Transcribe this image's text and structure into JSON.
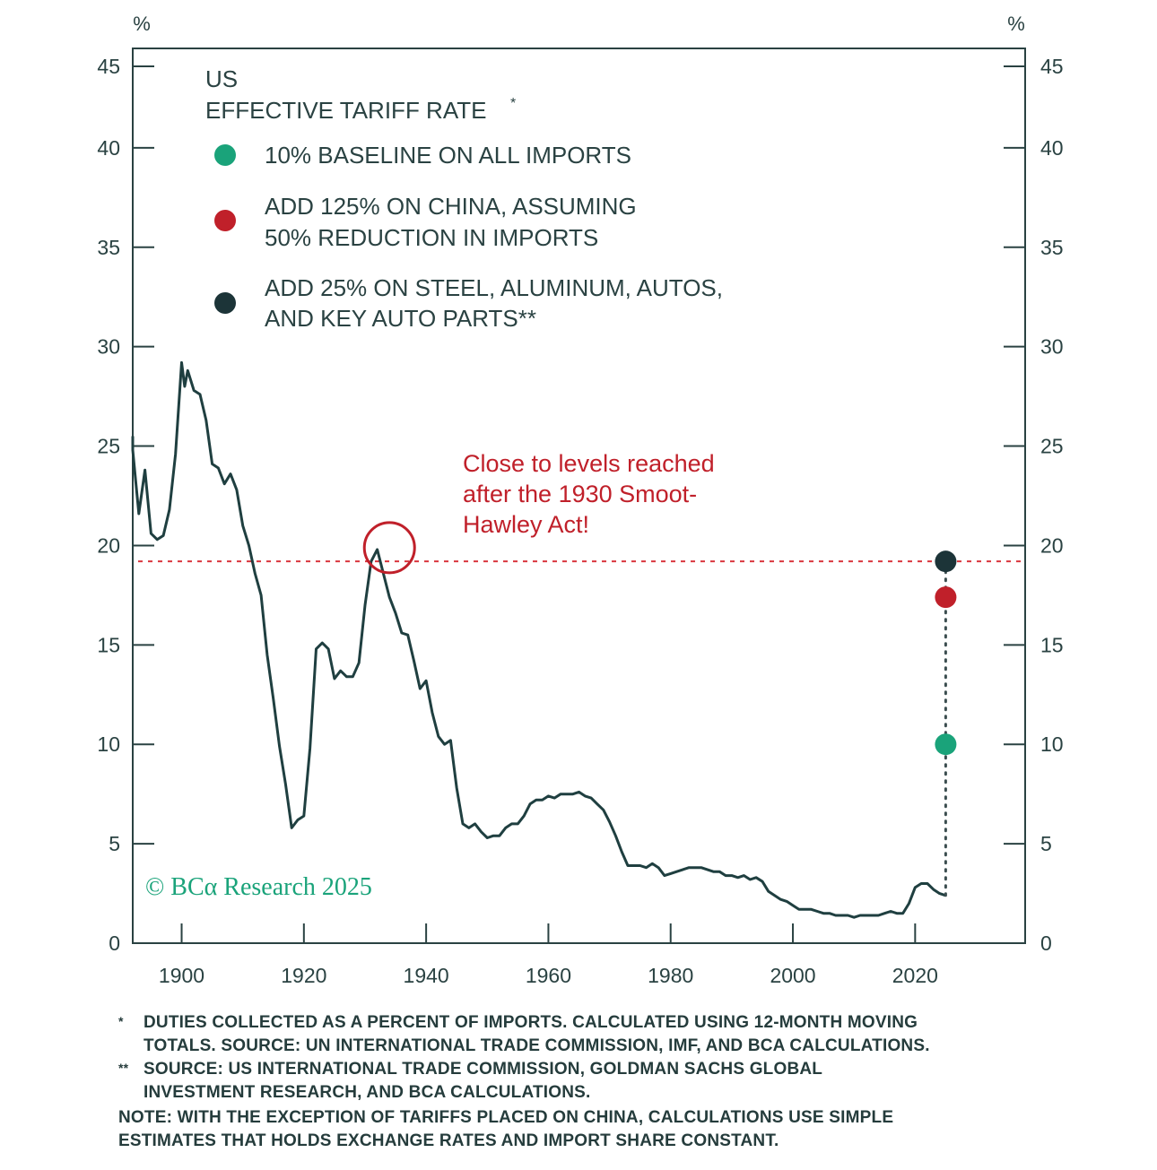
{
  "chart_data": {
    "type": "line",
    "unit_left": "%",
    "unit_right": "%",
    "xlim": [
      1892,
      2038
    ],
    "ylim": [
      0,
      45
    ],
    "x_ticks": [
      1900,
      1920,
      1940,
      1960,
      1980,
      2000,
      2020
    ],
    "y_ticks": [
      0,
      5,
      10,
      15,
      20,
      25,
      30,
      35,
      40,
      45
    ],
    "legend": {
      "title_line1": "US",
      "title_line2": "EFFECTIVE TARIFF RATE",
      "title_mark": "*",
      "items": [
        {
          "color": "#1aa37a",
          "line1": "10% BASELINE ON ALL IMPORTS",
          "line2": ""
        },
        {
          "color": "#c0202a",
          "line1": "ADD 125% ON CHINA, ASSUMING",
          "line2": "50% REDUCTION IN IMPORTS"
        },
        {
          "color": "#1c3438",
          "line1": "ADD 25% ON STEEL, ALUMINUM, AUTOS,",
          "line2": "AND KEY AUTO PARTS**"
        }
      ]
    },
    "annotation": {
      "lines": [
        "Close to levels reached",
        "after the 1930 Smoot-",
        "Hawley Act!"
      ],
      "circle_at": [
        1934,
        19.8
      ],
      "color": "#c0202a"
    },
    "reference_line": {
      "y": 19.2,
      "color": "#d9363e",
      "style": "dotted"
    },
    "scenario_points": {
      "x": 2025,
      "base": 2.4,
      "points": [
        {
          "y": 10.0,
          "color": "#1aa37a"
        },
        {
          "y": 17.4,
          "color": "#c0202a"
        },
        {
          "y": 19.2,
          "color": "#1c3438"
        }
      ]
    },
    "watermark": "© BCα Research 2025",
    "series": [
      {
        "color": "#1f3f40",
        "x": [
          1891.5,
          1892,
          1893,
          1894,
          1895,
          1896,
          1897,
          1898,
          1899,
          1900,
          1900.5,
          1901,
          1902,
          1903,
          1904,
          1905,
          1906,
          1907,
          1908,
          1909,
          1910,
          1911,
          1912,
          1913,
          1914,
          1915,
          1916,
          1917,
          1918,
          1919,
          1920,
          1921,
          1922,
          1923,
          1924,
          1925,
          1926,
          1927,
          1928,
          1929,
          1930,
          1931,
          1932,
          1933,
          1934,
          1935,
          1936,
          1937,
          1938,
          1939,
          1940,
          1941,
          1942,
          1943,
          1944,
          1945,
          1946,
          1947,
          1948,
          1949,
          1950,
          1951,
          1952,
          1953,
          1954,
          1955,
          1956,
          1957,
          1958,
          1959,
          1960,
          1961,
          1962,
          1963,
          1964,
          1965,
          1966,
          1967,
          1968,
          1969,
          1970,
          1971,
          1972,
          1973,
          1974,
          1975,
          1976,
          1977,
          1978,
          1979,
          1980,
          1981,
          1982,
          1983,
          1984,
          1985,
          1986,
          1987,
          1988,
          1989,
          1990,
          1991,
          1992,
          1993,
          1994,
          1995,
          1996,
          1997,
          1998,
          1999,
          2000,
          2001,
          2002,
          2003,
          2004,
          2005,
          2006,
          2007,
          2008,
          2009,
          2010,
          2011,
          2012,
          2013,
          2014,
          2015,
          2016,
          2017,
          2018,
          2019,
          2020,
          2021,
          2022,
          2023,
          2024,
          2025
        ],
        "y": [
          25.5,
          24.8,
          21.6,
          23.8,
          20.6,
          20.3,
          20.5,
          21.8,
          24.6,
          29.2,
          28.0,
          28.8,
          27.8,
          27.6,
          26.3,
          24.1,
          23.9,
          23.1,
          23.6,
          22.8,
          21.0,
          20.0,
          18.6,
          17.5,
          14.5,
          12.3,
          9.9,
          8.0,
          5.8,
          6.2,
          6.4,
          9.8,
          14.8,
          15.1,
          14.8,
          13.3,
          13.7,
          13.4,
          13.4,
          14.1,
          17.0,
          19.2,
          19.8,
          18.6,
          17.4,
          16.6,
          15.6,
          15.5,
          14.2,
          12.8,
          13.2,
          11.6,
          10.4,
          10.0,
          10.2,
          7.8,
          6.0,
          5.8,
          6.0,
          5.6,
          5.3,
          5.4,
          5.4,
          5.8,
          6.0,
          6.0,
          6.4,
          7.0,
          7.2,
          7.2,
          7.4,
          7.3,
          7.5,
          7.5,
          7.5,
          7.6,
          7.4,
          7.3,
          7.0,
          6.7,
          6.1,
          5.4,
          4.6,
          3.9,
          3.9,
          3.9,
          3.8,
          4.0,
          3.8,
          3.4,
          3.5,
          3.6,
          3.7,
          3.8,
          3.8,
          3.8,
          3.7,
          3.6,
          3.6,
          3.4,
          3.4,
          3.3,
          3.4,
          3.2,
          3.3,
          3.1,
          2.6,
          2.4,
          2.2,
          2.1,
          1.9,
          1.7,
          1.7,
          1.7,
          1.6,
          1.5,
          1.5,
          1.4,
          1.4,
          1.4,
          1.3,
          1.4,
          1.4,
          1.4,
          1.4,
          1.5,
          1.6,
          1.5,
          1.5,
          2.0,
          2.8,
          3.0,
          3.0,
          2.7,
          2.5,
          2.4
        ]
      }
    ]
  },
  "footnotes": {
    "mark1": "*",
    "note1_line1": "DUTIES COLLECTED AS A PERCENT OF IMPORTS. CALCULATED USING 12-MONTH MOVING",
    "note1_line2": "TOTALS. SOURCE: UN INTERNATIONAL TRADE COMMISSION, IMF, AND BCA CALCULATIONS.",
    "mark2": "**",
    "note2_line1": "SOURCE: US INTERNATIONAL TRADE COMMISSION, GOLDMAN SACHS GLOBAL",
    "note2_line2": "INVESTMENT RESEARCH, AND BCA CALCULATIONS.",
    "note3_line1": "NOTE: WITH THE EXCEPTION OF TARIFFS PLACED ON CHINA, CALCULATIONS USE SIMPLE",
    "note3_line2": "ESTIMATES THAT HOLDS EXCHANGE RATES AND IMPORT SHARE CONSTANT."
  }
}
